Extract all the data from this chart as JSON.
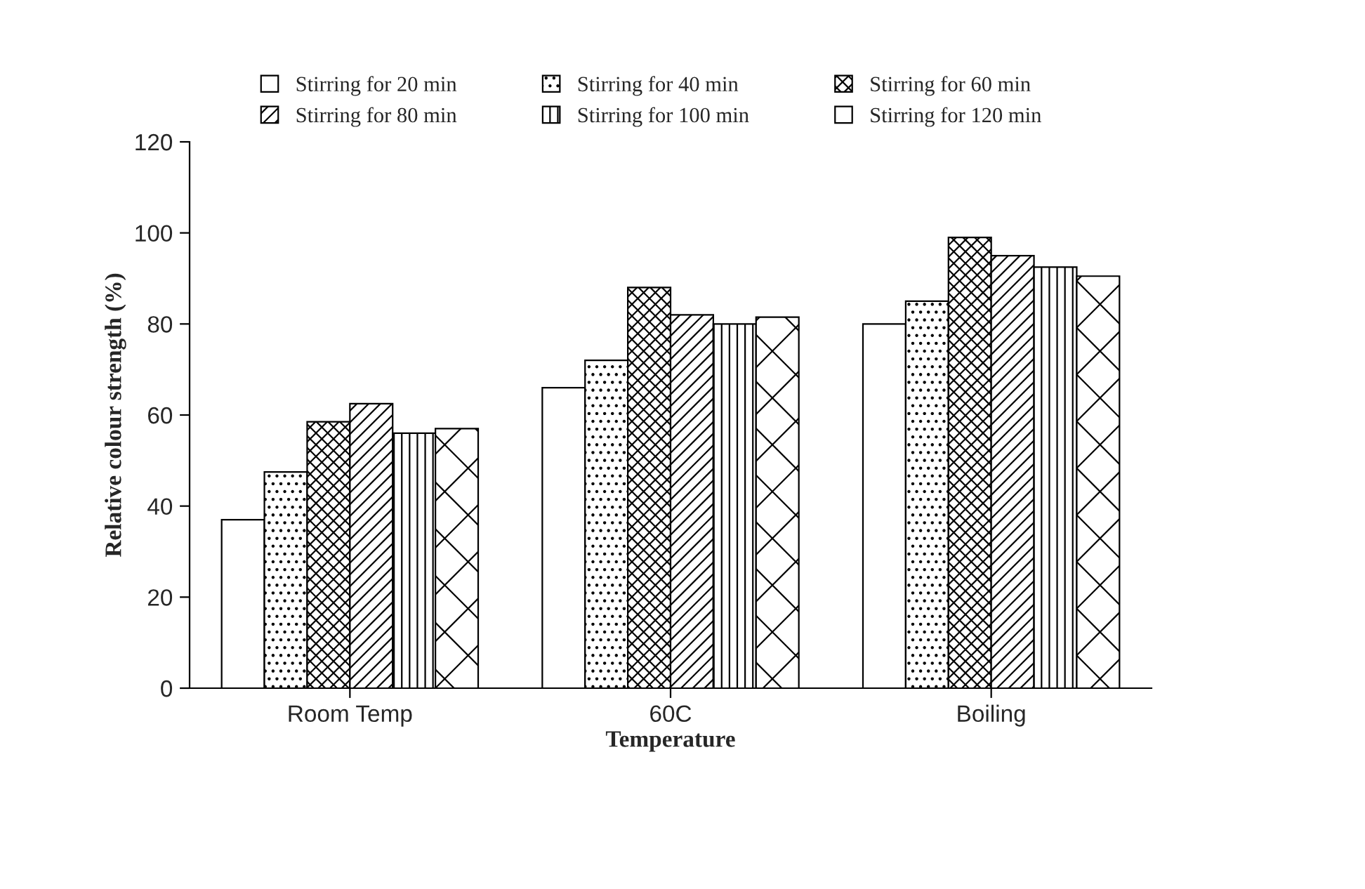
{
  "chart_data": {
    "type": "bar",
    "xlabel": "Temperature",
    "ylabel": "Relative colour strength (%)",
    "categories": [
      "Room Temp",
      "60C",
      "Boiling"
    ],
    "series": [
      {
        "name": "Stirring for 20 min",
        "color": "#ffffff",
        "values": [
          37,
          66,
          80
        ]
      },
      {
        "name": "Stirring for 40 min",
        "color": "#000000",
        "values": [
          47.5,
          72,
          85
        ]
      },
      {
        "name": "Stirring for 60 min",
        "color": "#000000",
        "values": [
          58.5,
          88,
          99
        ]
      },
      {
        "name": "Stirring for 80 min",
        "color": "#000000",
        "values": [
          62.5,
          82,
          95
        ]
      },
      {
        "name": "Stirring for 100 min",
        "color": "#000000",
        "values": [
          56,
          80,
          92.5
        ]
      },
      {
        "name": "Stirring for 120 min",
        "color": "#000000",
        "values": [
          57,
          81.5,
          90.5
        ]
      }
    ],
    "ylim": [
      0,
      120
    ],
    "yticks": [
      0,
      20,
      40,
      60,
      80,
      100,
      120
    ],
    "grid": false,
    "legend": "top"
  }
}
